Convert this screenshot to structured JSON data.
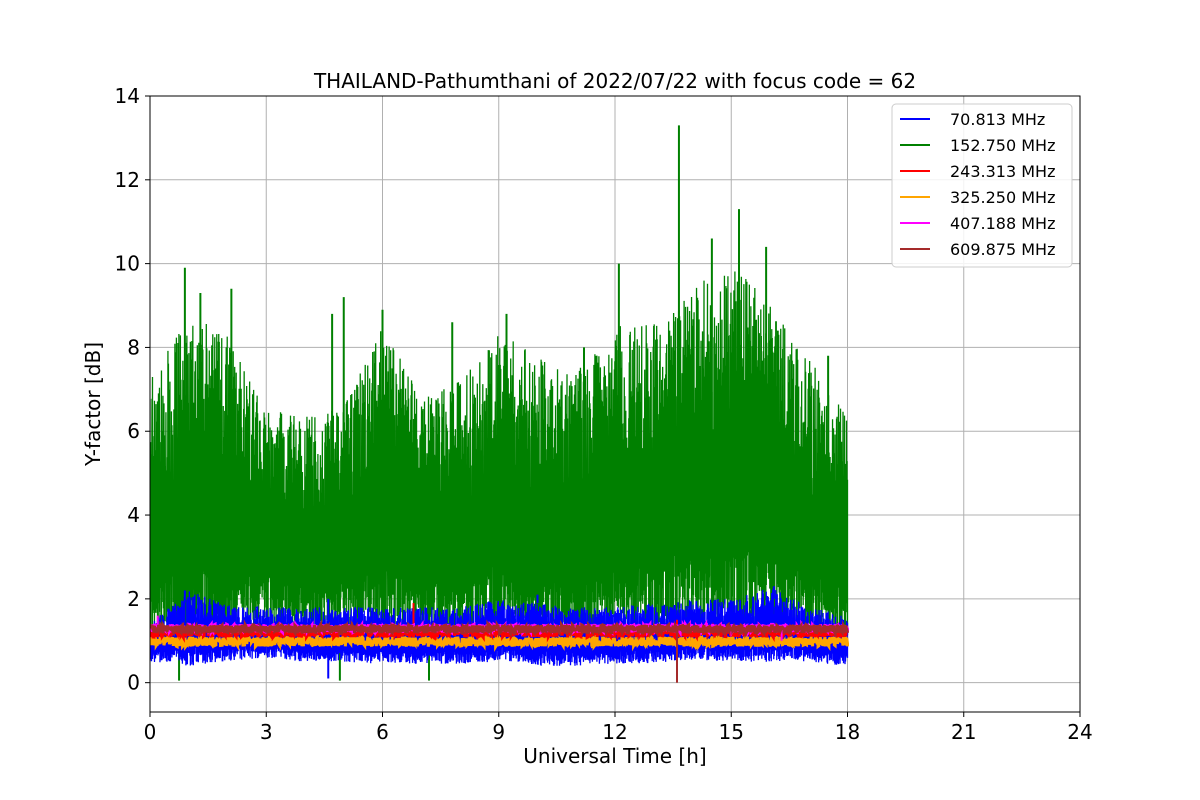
{
  "chart_data": {
    "type": "line",
    "title": "THAILAND-Pathumthani of 2022/07/22 with focus code = 62",
    "xlabel": "Universal Time [h]",
    "ylabel": "Y-factor [dB]",
    "xlim": [
      0,
      24
    ],
    "ylim": [
      -0.7,
      14
    ],
    "xticks": [
      0,
      3,
      6,
      9,
      12,
      15,
      18,
      21,
      24
    ],
    "yticks": [
      0,
      2,
      4,
      6,
      8,
      10,
      12,
      14
    ],
    "grid": true,
    "legend_position": "top-right",
    "series": [
      {
        "name": " 70.813 MHz",
        "color": "#0000ff",
        "band_low": [
          0.5,
          0.4,
          0.5,
          0.6,
          0.5,
          0.5,
          0.45,
          0.45,
          0.45,
          0.5,
          0.4,
          0.4,
          0.45,
          0.45,
          0.55,
          0.5,
          0.5,
          0.5,
          0.4
        ],
        "band_high": [
          1.4,
          2.2,
          1.9,
          1.8,
          1.8,
          1.8,
          1.8,
          1.8,
          1.8,
          2.0,
          1.9,
          1.8,
          1.8,
          1.9,
          2.0,
          2.0,
          2.3,
          1.8,
          1.6
        ],
        "spikes": [
          [
            0.9,
            2.2
          ],
          [
            4.6,
            0.1
          ],
          [
            10.0,
            2.1
          ],
          [
            16.1,
            2.3
          ]
        ]
      },
      {
        "name": "152.750 MHz",
        "color": "#008000",
        "band_low": [
          1.0,
          0.8,
          1.0,
          1.3,
          1.0,
          1.2,
          1.0,
          1.1,
          1.0,
          1.2,
          0.9,
          0.9,
          1.0,
          1.1,
          1.0,
          1.1,
          1.0,
          1.1,
          0.8
        ],
        "band_high": [
          7.2,
          8.8,
          8.3,
          6.5,
          6.4,
          6.6,
          8.6,
          6.8,
          7.2,
          8.4,
          7.8,
          7.4,
          8.5,
          8.6,
          9.5,
          9.9,
          9.2,
          7.8,
          6.3
        ],
        "spikes": [
          [
            0.9,
            9.9
          ],
          [
            1.3,
            9.3
          ],
          [
            2.1,
            9.4
          ],
          [
            4.7,
            8.8
          ],
          [
            5.0,
            9.2
          ],
          [
            6.0,
            8.9
          ],
          [
            7.8,
            8.6
          ],
          [
            9.2,
            8.8
          ],
          [
            11.2,
            8.0
          ],
          [
            12.1,
            10.0
          ],
          [
            13.65,
            13.3
          ],
          [
            14.5,
            10.6
          ],
          [
            15.2,
            11.3
          ],
          [
            15.9,
            10.4
          ],
          [
            16.2,
            8.4
          ],
          [
            17.5,
            7.8
          ],
          [
            0.75,
            0.05
          ],
          [
            4.9,
            0.05
          ],
          [
            7.2,
            0.05
          ]
        ]
      },
      {
        "name": "243.313 MHz",
        "color": "#ff0000",
        "base": 1.2,
        "noise": 0.12,
        "spikes": [
          [
            6.8,
            1.9
          ],
          [
            13.6,
            1.5
          ]
        ]
      },
      {
        "name": "325.250 MHz",
        "color": "#ffa500",
        "base": 0.98,
        "noise": 0.12,
        "spikes": []
      },
      {
        "name": "407.188 MHz",
        "color": "#ff00ff",
        "base": 1.3,
        "noise": 0.1,
        "spikes": [
          [
            0.2,
            1.6
          ],
          [
            16.3,
            1.0
          ]
        ]
      },
      {
        "name": "609.875 MHz",
        "color": "#a52a2a",
        "base": 1.28,
        "noise": 0.1,
        "spikes": [
          [
            13.6,
            0.0
          ]
        ]
      }
    ]
  }
}
